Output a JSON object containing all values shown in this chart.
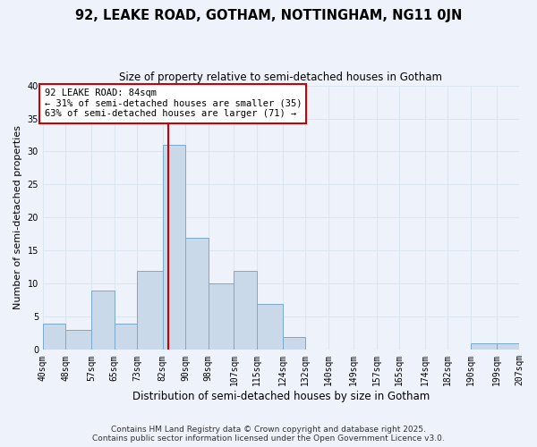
{
  "title": "92, LEAKE ROAD, GOTHAM, NOTTINGHAM, NG11 0JN",
  "subtitle": "Size of property relative to semi-detached houses in Gotham",
  "xlabel": "Distribution of semi-detached houses by size in Gotham",
  "ylabel": "Number of semi-detached properties",
  "bin_labels": [
    "40sqm",
    "48sqm",
    "57sqm",
    "65sqm",
    "73sqm",
    "82sqm",
    "90sqm",
    "98sqm",
    "107sqm",
    "115sqm",
    "124sqm",
    "132sqm",
    "140sqm",
    "149sqm",
    "157sqm",
    "165sqm",
    "174sqm",
    "182sqm",
    "190sqm",
    "199sqm",
    "207sqm"
  ],
  "bin_edges": [
    40,
    48,
    57,
    65,
    73,
    82,
    90,
    98,
    107,
    115,
    124,
    132,
    140,
    149,
    157,
    165,
    174,
    182,
    190,
    199,
    207
  ],
  "bar_heights": [
    4,
    3,
    9,
    4,
    12,
    31,
    17,
    10,
    12,
    7,
    2,
    0,
    0,
    0,
    0,
    0,
    0,
    0,
    1,
    1,
    0
  ],
  "bar_color": "#c9d9ea",
  "bar_edge_color": "#7aa8cc",
  "grid_color": "#dce6f0",
  "background_color": "#eef2fb",
  "property_line_x": 84,
  "annotation_line1": "92 LEAKE ROAD: 84sqm",
  "annotation_line2": "← 31% of semi-detached houses are smaller (35)",
  "annotation_line3": "63% of semi-detached houses are larger (71) →",
  "annotation_box_color": "#ffffff",
  "annotation_border_color": "#cc0000",
  "property_line_color": "#cc0000",
  "ylim": [
    0,
    40
  ],
  "yticks": [
    0,
    5,
    10,
    15,
    20,
    25,
    30,
    35,
    40
  ],
  "footer_line1": "Contains HM Land Registry data © Crown copyright and database right 2025.",
  "footer_line2": "Contains public sector information licensed under the Open Government Licence v3.0.",
  "title_fontsize": 10.5,
  "subtitle_fontsize": 8.5,
  "xlabel_fontsize": 8.5,
  "ylabel_fontsize": 8,
  "tick_fontsize": 7,
  "annotation_fontsize": 7.5,
  "footer_fontsize": 6.5
}
